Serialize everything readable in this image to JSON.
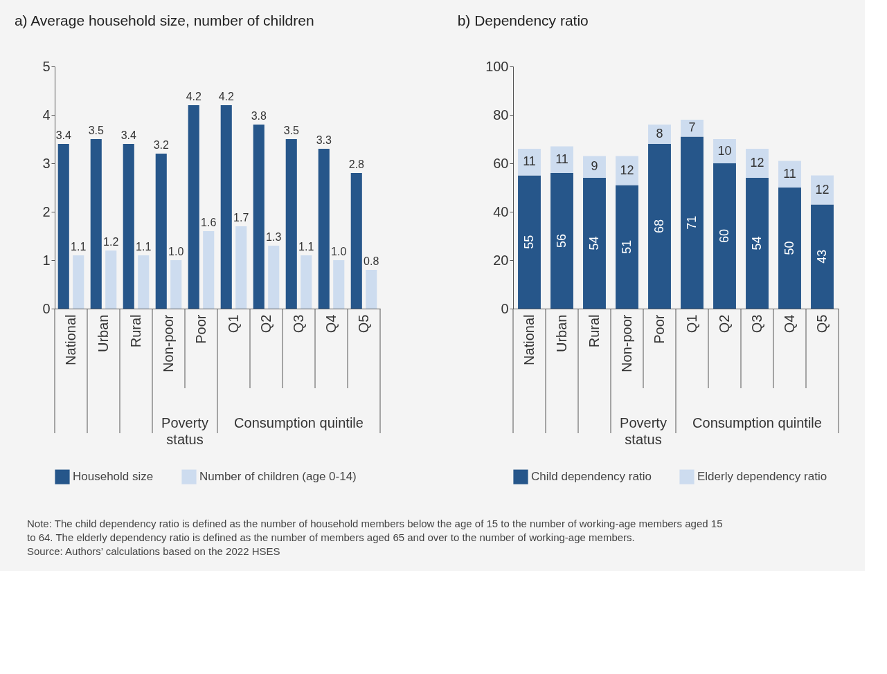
{
  "chart_data": [
    {
      "type": "bar",
      "title": "a) Average household size, number of children",
      "categories": [
        "National",
        "Urban",
        "Rural",
        "Non-poor",
        "Poor",
        "Q1",
        "Q2",
        "Q3",
        "Q4",
        "Q5"
      ],
      "series": [
        {
          "name": "Household size",
          "color": "#26568a",
          "values": [
            3.4,
            3.5,
            3.4,
            3.2,
            4.2,
            4.2,
            3.8,
            3.5,
            3.3,
            2.8
          ],
          "value_labels": [
            "3.4",
            "3.5",
            "3.4",
            "3.2",
            "4.2",
            "4.2",
            "3.8",
            "3.5",
            "3.3",
            "2.8"
          ]
        },
        {
          "name": "Number of children (age 0-14)",
          "color": "#cddcef",
          "values": [
            1.1,
            1.2,
            1.1,
            1.0,
            1.6,
            1.7,
            1.3,
            1.1,
            1.0,
            0.8
          ],
          "value_labels": [
            "1.1",
            "1.2",
            "1.1",
            "1.0",
            "1.6",
            "1.7",
            "1.3",
            "1.1",
            "1.0",
            "0.8"
          ]
        }
      ],
      "ylim": [
        0,
        5
      ],
      "yticks": [
        0,
        1,
        2,
        3,
        4,
        5
      ],
      "grid": false,
      "legend": "bottom",
      "data_labels": true,
      "annotations": [
        "Poverty status",
        "Consumption quintile",
        "Note: The child dependency ratio is defined as the number of household members below the age of 15 to the number of working-age members aged 15 to 64. The elderly dependency ratio is defined as the number of members aged 65 and over to the number of working-age members.",
        "Source: Authors’ calculations based on the 2022 HSES"
      ]
    },
    {
      "type": "bar",
      "title": "b) Dependency ratio",
      "stacked": true,
      "categories": [
        "National",
        "Urban",
        "Rural",
        "Non-poor",
        "Poor",
        "Q1",
        "Q2",
        "Q3",
        "Q4",
        "Q5"
      ],
      "series": [
        {
          "name": "Child dependency ratio",
          "color": "#26568a",
          "values": [
            55,
            56,
            54,
            51,
            68,
            71,
            60,
            54,
            50,
            43
          ]
        },
        {
          "name": "Elderly dependency ratio",
          "color": "#cddcef",
          "values": [
            11,
            11,
            9,
            12,
            8,
            7,
            10,
            12,
            11,
            12
          ]
        }
      ],
      "ylim": [
        0,
        100
      ],
      "yticks": [
        0,
        20,
        40,
        60,
        80,
        100
      ],
      "grid": false,
      "legend": "bottom",
      "data_labels": true,
      "annotations": [
        "Poverty status",
        "Consumption quintile"
      ]
    }
  ]
}
